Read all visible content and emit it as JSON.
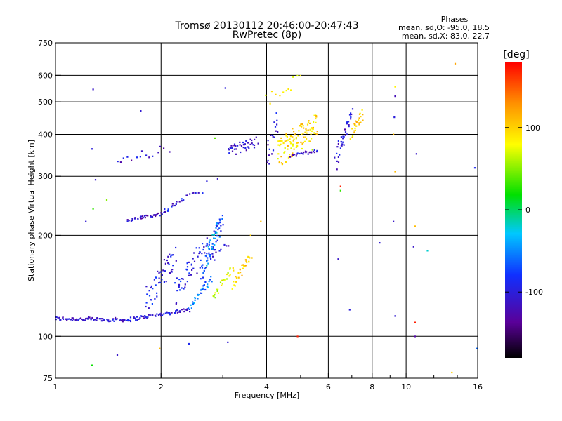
{
  "chart_data": {
    "type": "scatter",
    "title": "Tromsø 20130112 20:46:00-20:47:43",
    "subtitle": "RwPretec (8p)",
    "xlabel": "Frequency [MHz]",
    "ylabel": "Stationary phase Virtual Height [km]",
    "x_scale": "log",
    "y_scale": "log",
    "xlim": [
      1,
      16
    ],
    "ylim": [
      75,
      750
    ],
    "x_ticks": [
      1,
      2,
      4,
      6,
      8,
      10,
      16
    ],
    "x_tick_labels": [
      "1",
      "2",
      "4",
      "6",
      "8",
      "10",
      "16"
    ],
    "x_minor_ticks": [
      3,
      5,
      7,
      9,
      12,
      14
    ],
    "y_ticks": [
      75,
      100,
      200,
      300,
      400,
      500,
      600,
      750
    ],
    "y_tick_labels": [
      "75",
      "100",
      "200",
      "300",
      "400",
      "500",
      "600",
      "750"
    ],
    "grid": true,
    "stats": {
      "heading": "Phases",
      "line1": "mean, sd,O: -95.0, 18.5",
      "line2": "mean, sd,X: 83.0, 22.7"
    },
    "colorbar": {
      "title": "[deg]",
      "range": [
        -180,
        180
      ],
      "tick_values": [
        100,
        0,
        -100
      ],
      "tick_labels": [
        "100",
        "0",
        "-100"
      ],
      "colormap": "rainbow"
    },
    "traces": [
      {
        "f": [
          1.0,
          1.6
        ],
        "h": [
          113,
          112
        ],
        "phase": -110,
        "n": 70,
        "jitter": 1.5
      },
      {
        "f": [
          1.6,
          2.4
        ],
        "h": [
          112,
          120
        ],
        "phase": -105,
        "n": 60,
        "jitter": 1.5
      },
      {
        "f": [
          2.4,
          2.8
        ],
        "h": [
          122,
          148
        ],
        "phase": -55,
        "n": 30,
        "jitter": 3
      },
      {
        "f": [
          2.8,
          3.2
        ],
        "h": [
          130,
          160
        ],
        "phase": 75,
        "n": 25,
        "jitter": 3
      },
      {
        "f": [
          3.2,
          3.6
        ],
        "h": [
          140,
          175
        ],
        "phase": 95,
        "n": 30,
        "jitter": 4
      },
      {
        "f": [
          1.8,
          2.2
        ],
        "h": [
          125,
          175
        ],
        "phase": -95,
        "n": 50,
        "jitter": 14
      },
      {
        "f": [
          2.2,
          2.7
        ],
        "h": [
          135,
          185
        ],
        "phase": -95,
        "n": 50,
        "jitter": 14
      },
      {
        "f": [
          2.6,
          3.0
        ],
        "h": [
          150,
          220
        ],
        "phase": -80,
        "n": 55,
        "jitter": 18
      },
      {
        "f": [
          2.7,
          2.9
        ],
        "h": [
          165,
          215
        ],
        "phase": -40,
        "n": 25,
        "jitter": 12
      },
      {
        "f": [
          1.6,
          2.0
        ],
        "h": [
          222,
          232
        ],
        "phase": -115,
        "n": 35,
        "jitter": 2
      },
      {
        "f": [
          2.0,
          2.3
        ],
        "h": [
          232,
          256
        ],
        "phase": -105,
        "n": 15,
        "jitter": 3
      },
      {
        "f": [
          2.3,
          2.6
        ],
        "h": [
          256,
          270
        ],
        "phase": -100,
        "n": 10,
        "jitter": 4
      },
      {
        "f": [
          2.8,
          3.1
        ],
        "h": [
          170,
          190
        ],
        "phase": -110,
        "n": 8,
        "jitter": 4
      },
      {
        "f": [
          3.1,
          3.75
        ],
        "h": [
          355,
          380
        ],
        "phase": -110,
        "n": 40,
        "jitter": 14
      },
      {
        "f": [
          1.5,
          2.1
        ],
        "h": [
          340,
          360
        ],
        "phase": -110,
        "n": 15,
        "jitter": 14
      },
      {
        "f": [
          4.0,
          4.3
        ],
        "h": [
          340,
          440
        ],
        "phase": -105,
        "n": 20,
        "jitter": 35
      },
      {
        "f": [
          4.3,
          5.6
        ],
        "h": [
          350,
          430
        ],
        "phase": 95,
        "n": 110,
        "jitter": 35
      },
      {
        "f": [
          4.7,
          5.6
        ],
        "h": [
          345,
          360
        ],
        "phase": -110,
        "n": 25,
        "jitter": 5
      },
      {
        "f": [
          6.3,
          7.0
        ],
        "h": [
          330,
          460
        ],
        "phase": -105,
        "n": 40,
        "jitter": 20
      },
      {
        "f": [
          7.0,
          7.5
        ],
        "h": [
          400,
          460
        ],
        "phase": 95,
        "n": 25,
        "jitter": 15
      },
      {
        "f": [
          4.0,
          5.0
        ],
        "h": [
          500,
          590
        ],
        "phase": 90,
        "n": 12,
        "jitter": 25
      }
    ],
    "scatter_points": [
      {
        "f": 1.28,
        "h": 545,
        "phase": -110
      },
      {
        "f": 1.75,
        "h": 470,
        "phase": -105
      },
      {
        "f": 3.05,
        "h": 550,
        "phase": -100
      },
      {
        "f": 1.27,
        "h": 362,
        "phase": -100
      },
      {
        "f": 1.3,
        "h": 293,
        "phase": -110
      },
      {
        "f": 1.28,
        "h": 240,
        "phase": 30
      },
      {
        "f": 1.4,
        "h": 255,
        "phase": 50
      },
      {
        "f": 1.22,
        "h": 220,
        "phase": -105
      },
      {
        "f": 1.27,
        "h": 82,
        "phase": 20
      },
      {
        "f": 1.5,
        "h": 88,
        "phase": -110
      },
      {
        "f": 1.98,
        "h": 92,
        "phase": 110
      },
      {
        "f": 2.4,
        "h": 95,
        "phase": -90
      },
      {
        "f": 3.1,
        "h": 96,
        "phase": -105
      },
      {
        "f": 3.6,
        "h": 200,
        "phase": 100
      },
      {
        "f": 3.85,
        "h": 220,
        "phase": 110
      },
      {
        "f": 4.9,
        "h": 100,
        "phase": 170
      },
      {
        "f": 5.4,
        "h": 360,
        "phase": 60
      },
      {
        "f": 6.5,
        "h": 280,
        "phase": 170
      },
      {
        "f": 6.5,
        "h": 272,
        "phase": 30
      },
      {
        "f": 6.4,
        "h": 170,
        "phase": -110
      },
      {
        "f": 6.9,
        "h": 120,
        "phase": -100
      },
      {
        "f": 8.4,
        "h": 190,
        "phase": -105
      },
      {
        "f": 9.2,
        "h": 220,
        "phase": -110
      },
      {
        "f": 9.3,
        "h": 310,
        "phase": 110
      },
      {
        "f": 9.3,
        "h": 555,
        "phase": 85
      },
      {
        "f": 9.3,
        "h": 520,
        "phase": -120
      },
      {
        "f": 9.25,
        "h": 450,
        "phase": -100
      },
      {
        "f": 9.2,
        "h": 400,
        "phase": 110
      },
      {
        "f": 9.3,
        "h": 115,
        "phase": -105
      },
      {
        "f": 10.6,
        "h": 213,
        "phase": 110
      },
      {
        "f": 10.6,
        "h": 110,
        "phase": 170
      },
      {
        "f": 10.6,
        "h": 100,
        "phase": -130
      },
      {
        "f": 10.5,
        "h": 185,
        "phase": -110
      },
      {
        "f": 10.7,
        "h": 350,
        "phase": -110
      },
      {
        "f": 11.5,
        "h": 180,
        "phase": -20
      },
      {
        "f": 13.8,
        "h": 650,
        "phase": 120
      },
      {
        "f": 13.5,
        "h": 78,
        "phase": 100
      },
      {
        "f": 15.7,
        "h": 318,
        "phase": -90
      },
      {
        "f": 15.9,
        "h": 92,
        "phase": -60
      },
      {
        "f": 2.7,
        "h": 290,
        "phase": -100
      },
      {
        "f": 2.9,
        "h": 295,
        "phase": -110
      },
      {
        "f": 2.85,
        "h": 390,
        "phase": 40
      }
    ]
  }
}
